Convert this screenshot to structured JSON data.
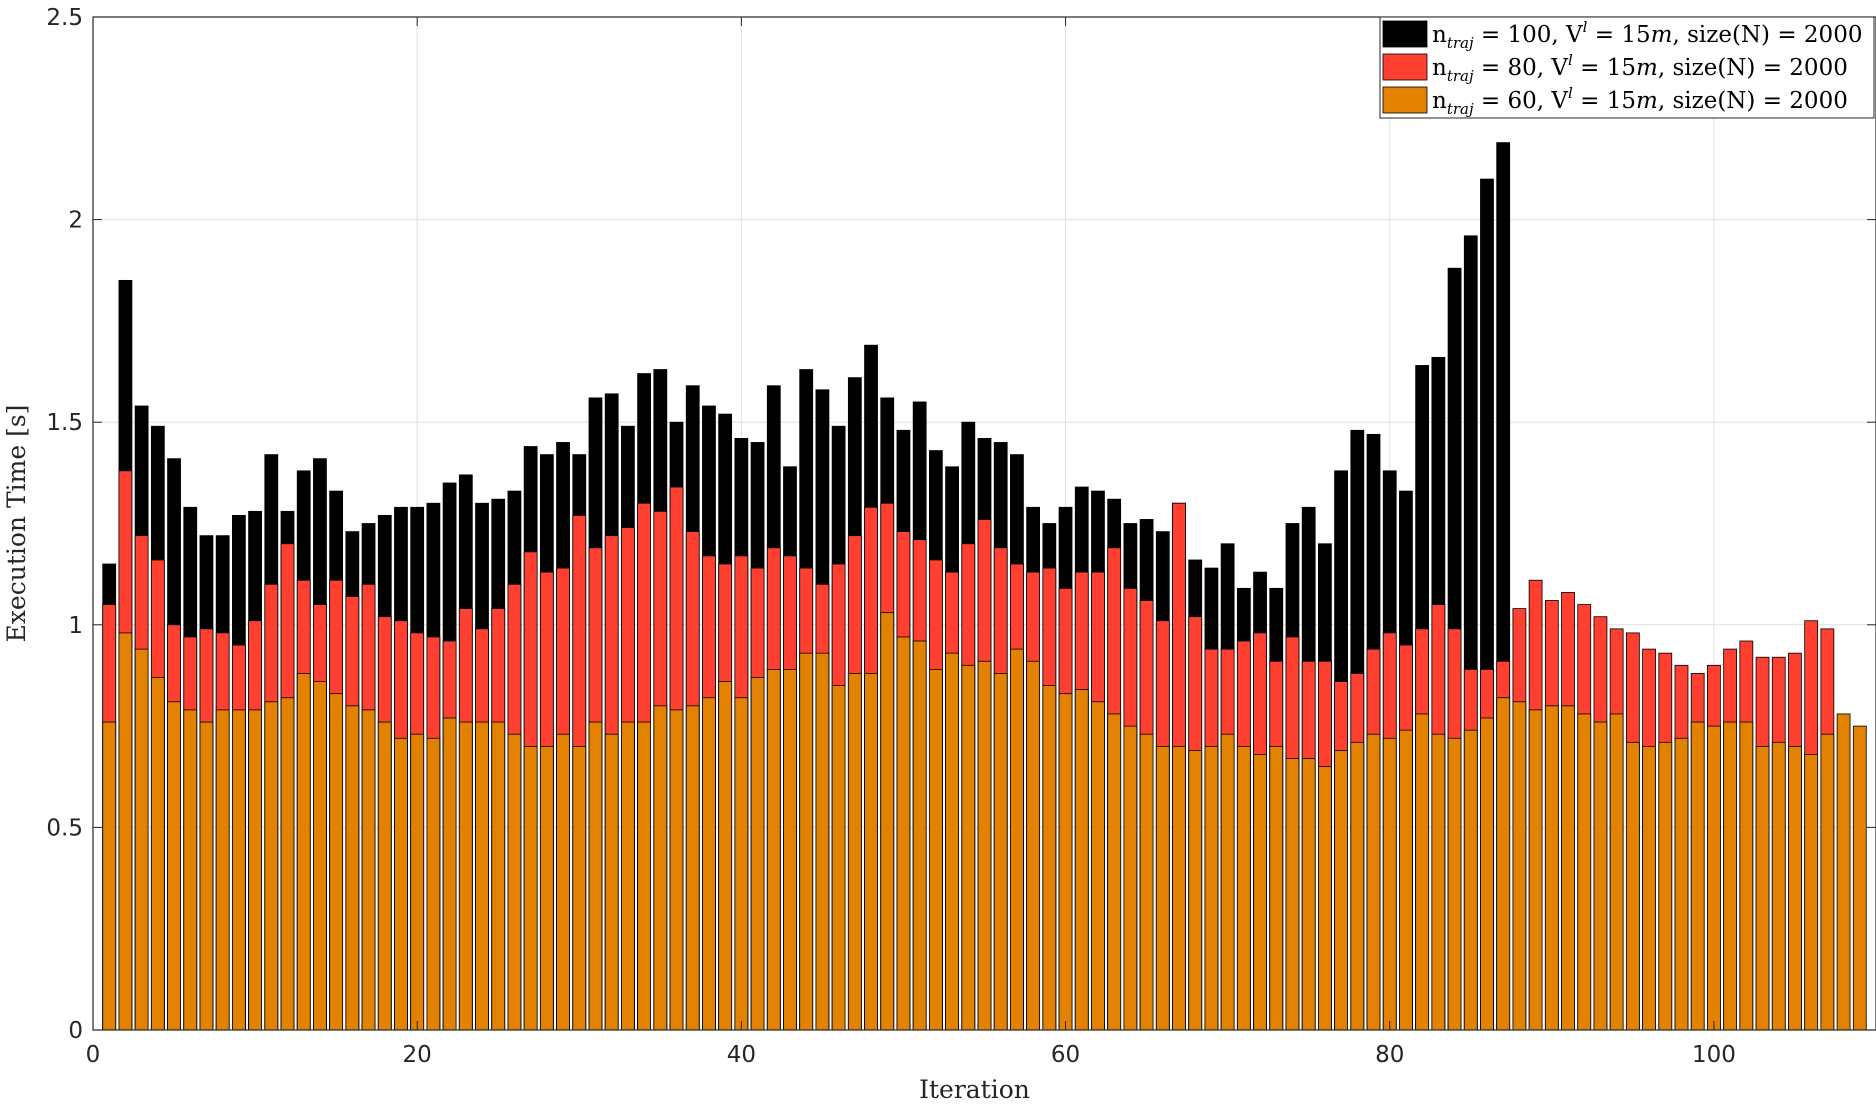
{
  "chart_data": {
    "type": "bar",
    "layout_mode": "overlaid",
    "xlabel": "Iteration",
    "ylabel": "Execution Time [s]",
    "xlim": [
      0,
      110
    ],
    "ylim": [
      0,
      2.5
    ],
    "xticks": [
      0,
      20,
      40,
      60,
      80,
      100
    ],
    "yticks": [
      0,
      0.5,
      1,
      1.5,
      2,
      2.5
    ],
    "ytick_labels": [
      "0",
      "0.5",
      "1",
      "1.5",
      "2",
      "2.5"
    ],
    "grid": true,
    "legend_position": "top-right",
    "series": [
      {
        "name": "n_traj = 100, V^l = 15m, size(N) = 2000",
        "legend_label": {
          "pre": "n",
          "sub": "traj",
          "mid1": " = 100, V",
          "sup": "l",
          "mid2": " = 15",
          "unit": "m",
          "post": ", size(N) = 2000"
        },
        "color": "#000000",
        "x": [
          1,
          2,
          3,
          4,
          5,
          6,
          7,
          8,
          9,
          10,
          11,
          12,
          13,
          14,
          15,
          16,
          17,
          18,
          19,
          20,
          21,
          22,
          23,
          24,
          25,
          26,
          27,
          28,
          29,
          30,
          31,
          32,
          33,
          34,
          35,
          36,
          37,
          38,
          39,
          40,
          41,
          42,
          43,
          44,
          45,
          46,
          47,
          48,
          49,
          50,
          51,
          52,
          53,
          54,
          55,
          56,
          57,
          58,
          59,
          60,
          61,
          62,
          63,
          64,
          65,
          66,
          67,
          68,
          69,
          70,
          71,
          72,
          73,
          74,
          75,
          76,
          77,
          78,
          79,
          80,
          81,
          82,
          83,
          84,
          85,
          86,
          87
        ],
        "values": [
          1.15,
          1.85,
          1.54,
          1.49,
          1.41,
          1.29,
          1.22,
          1.22,
          1.27,
          1.28,
          1.42,
          1.28,
          1.38,
          1.41,
          1.33,
          1.23,
          1.25,
          1.27,
          1.29,
          1.29,
          1.3,
          1.35,
          1.37,
          1.3,
          1.31,
          1.33,
          1.44,
          1.42,
          1.45,
          1.42,
          1.56,
          1.57,
          1.49,
          1.62,
          1.63,
          1.5,
          1.59,
          1.54,
          1.52,
          1.46,
          1.45,
          1.59,
          1.39,
          1.63,
          1.58,
          1.49,
          1.61,
          1.69,
          1.56,
          1.48,
          1.55,
          1.43,
          1.39,
          1.5,
          1.46,
          1.45,
          1.42,
          1.29,
          1.25,
          1.29,
          1.34,
          1.33,
          1.31,
          1.25,
          1.26,
          1.23,
          1.3,
          1.16,
          1.14,
          1.2,
          1.09,
          1.13,
          1.09,
          1.25,
          1.29,
          1.2,
          1.38,
          1.48,
          1.47,
          1.38,
          1.33,
          1.64,
          1.66,
          1.88,
          1.96,
          2.1,
          2.19
        ]
      },
      {
        "name": "n_traj = 80,  V^l = 15m, size(N) = 2000",
        "legend_label": {
          "pre": "n",
          "sub": "traj",
          "mid1": " = 80,  V",
          "sup": "l",
          "mid2": " = 15",
          "unit": "m",
          "post": ", size(N) = 2000"
        },
        "color": "#ff4030",
        "x": [
          1,
          2,
          3,
          4,
          5,
          6,
          7,
          8,
          9,
          10,
          11,
          12,
          13,
          14,
          15,
          16,
          17,
          18,
          19,
          20,
          21,
          22,
          23,
          24,
          25,
          26,
          27,
          28,
          29,
          30,
          31,
          32,
          33,
          34,
          35,
          36,
          37,
          38,
          39,
          40,
          41,
          42,
          43,
          44,
          45,
          46,
          47,
          48,
          49,
          50,
          51,
          52,
          53,
          54,
          55,
          56,
          57,
          58,
          59,
          60,
          61,
          62,
          63,
          64,
          65,
          66,
          67,
          68,
          69,
          70,
          71,
          72,
          73,
          74,
          75,
          76,
          77,
          78,
          79,
          80,
          81,
          82,
          83,
          84,
          85,
          86,
          87,
          88,
          89,
          90,
          91,
          92,
          93,
          94,
          95,
          96,
          97,
          98,
          99,
          100,
          101,
          102,
          103,
          104,
          105,
          106,
          107
        ],
        "values": [
          1.05,
          1.38,
          1.22,
          1.16,
          1.0,
          0.97,
          0.99,
          0.98,
          0.95,
          1.01,
          1.1,
          1.2,
          1.11,
          1.05,
          1.11,
          1.07,
          1.1,
          1.02,
          1.01,
          0.98,
          0.97,
          0.96,
          1.04,
          0.99,
          1.04,
          1.1,
          1.18,
          1.13,
          1.14,
          1.27,
          1.19,
          1.22,
          1.24,
          1.3,
          1.28,
          1.34,
          1.23,
          1.17,
          1.15,
          1.17,
          1.14,
          1.19,
          1.17,
          1.14,
          1.1,
          1.15,
          1.22,
          1.29,
          1.3,
          1.23,
          1.21,
          1.16,
          1.13,
          1.2,
          1.26,
          1.19,
          1.15,
          1.13,
          1.14,
          1.09,
          1.13,
          1.13,
          1.19,
          1.09,
          1.06,
          1.01,
          1.3,
          1.02,
          0.94,
          0.94,
          0.96,
          0.98,
          0.91,
          0.97,
          0.91,
          0.91,
          0.86,
          0.88,
          0.94,
          0.98,
          0.95,
          0.99,
          1.05,
          0.99,
          0.89,
          0.89,
          0.91,
          1.04,
          1.11,
          1.06,
          1.08,
          1.05,
          1.02,
          0.99,
          0.98,
          0.94,
          0.93,
          0.9,
          0.88,
          0.9,
          0.94,
          0.96,
          0.92,
          0.92,
          0.93,
          1.01,
          0.99
        ]
      },
      {
        "name": "n_traj = 60,  V^l = 15m, size(N) = 2000",
        "legend_label": {
          "pre": "n",
          "sub": "traj",
          "mid1": " = 60,  V",
          "sup": "l",
          "mid2": " = 15",
          "unit": "m",
          "post": ", size(N) = 2000"
        },
        "color": "#e38100",
        "x": [
          1,
          2,
          3,
          4,
          5,
          6,
          7,
          8,
          9,
          10,
          11,
          12,
          13,
          14,
          15,
          16,
          17,
          18,
          19,
          20,
          21,
          22,
          23,
          24,
          25,
          26,
          27,
          28,
          29,
          30,
          31,
          32,
          33,
          34,
          35,
          36,
          37,
          38,
          39,
          40,
          41,
          42,
          43,
          44,
          45,
          46,
          47,
          48,
          49,
          50,
          51,
          52,
          53,
          54,
          55,
          56,
          57,
          58,
          59,
          60,
          61,
          62,
          63,
          64,
          65,
          66,
          67,
          68,
          69,
          70,
          71,
          72,
          73,
          74,
          75,
          76,
          77,
          78,
          79,
          80,
          81,
          82,
          83,
          84,
          85,
          86,
          87,
          88,
          89,
          90,
          91,
          92,
          93,
          94,
          95,
          96,
          97,
          98,
          99,
          100,
          101,
          102,
          103,
          104,
          105,
          106,
          107,
          108,
          109
        ],
        "values": [
          0.76,
          0.98,
          0.94,
          0.87,
          0.81,
          0.79,
          0.76,
          0.79,
          0.79,
          0.79,
          0.81,
          0.82,
          0.88,
          0.86,
          0.83,
          0.8,
          0.79,
          0.76,
          0.72,
          0.73,
          0.72,
          0.77,
          0.76,
          0.76,
          0.76,
          0.73,
          0.7,
          0.7,
          0.73,
          0.7,
          0.76,
          0.73,
          0.76,
          0.76,
          0.8,
          0.79,
          0.8,
          0.82,
          0.86,
          0.82,
          0.87,
          0.89,
          0.89,
          0.93,
          0.93,
          0.85,
          0.88,
          0.88,
          1.03,
          0.97,
          0.96,
          0.89,
          0.93,
          0.9,
          0.91,
          0.88,
          0.94,
          0.91,
          0.85,
          0.83,
          0.84,
          0.81,
          0.78,
          0.75,
          0.73,
          0.7,
          0.7,
          0.69,
          0.7,
          0.73,
          0.7,
          0.68,
          0.7,
          0.67,
          0.67,
          0.65,
          0.69,
          0.71,
          0.73,
          0.72,
          0.74,
          0.78,
          0.73,
          0.72,
          0.74,
          0.77,
          0.82,
          0.81,
          0.79,
          0.8,
          0.8,
          0.78,
          0.76,
          0.78,
          0.71,
          0.7,
          0.71,
          0.72,
          0.76,
          0.75,
          0.76,
          0.76,
          0.7,
          0.71,
          0.7,
          0.68,
          0.73,
          0.78,
          0.75
        ]
      }
    ]
  }
}
